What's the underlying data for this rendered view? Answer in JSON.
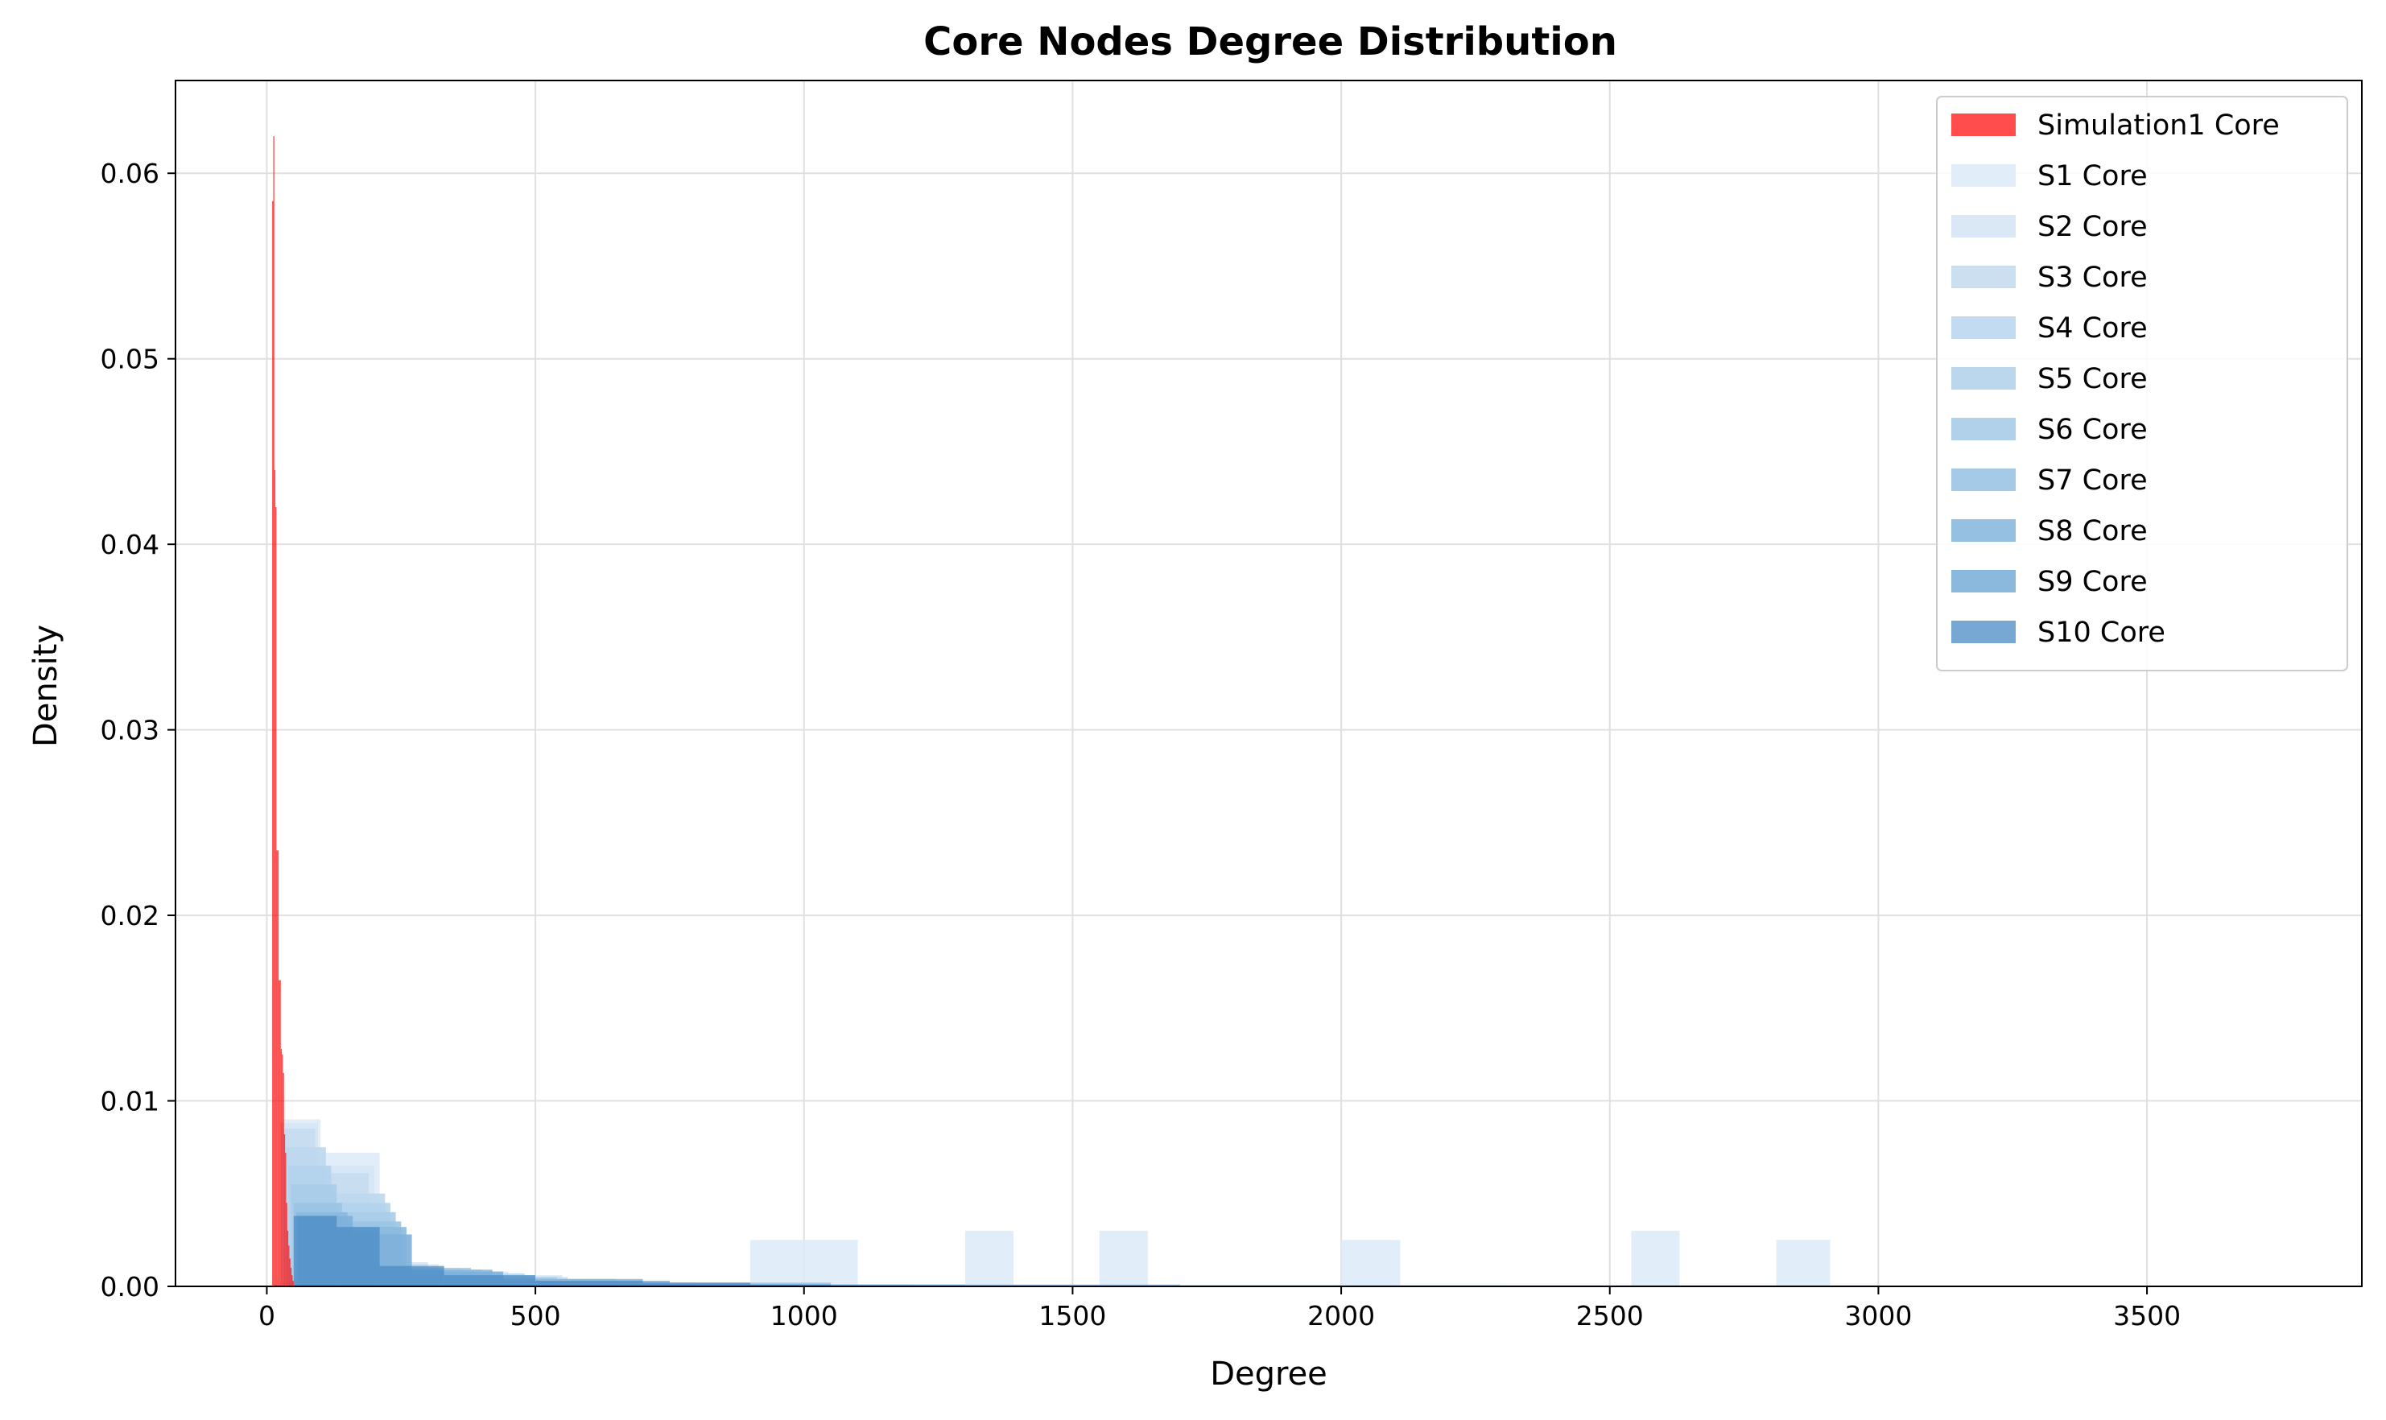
{
  "chart_data": {
    "type": "histogram",
    "title": "Core Nodes Degree Distribution",
    "xlabel": "Degree",
    "ylabel": "Density",
    "xlim": [
      -170,
      3900
    ],
    "ylim": [
      0,
      0.065
    ],
    "x_ticks": [
      0,
      500,
      1000,
      1500,
      2000,
      2500,
      3000,
      3500
    ],
    "x_tick_labels": [
      "0",
      "500",
      "1000",
      "1500",
      "2000",
      "2500",
      "3000",
      "3500"
    ],
    "y_ticks": [
      0,
      0.01,
      0.02,
      0.03,
      0.04,
      0.05,
      0.06
    ],
    "y_tick_labels": [
      "0.00",
      "0.01",
      "0.02",
      "0.03",
      "0.04",
      "0.05",
      "0.06"
    ],
    "grid": true,
    "legend_position": "upper right",
    "series": [
      {
        "name": "Simulation1 Core",
        "color": "#ff0000",
        "opacity": 0.7,
        "bins": [
          [
            10,
            12,
            0.0585
          ],
          [
            12,
            14,
            0.062
          ],
          [
            14,
            16,
            0.044
          ],
          [
            16,
            18,
            0.042
          ],
          [
            18,
            20,
            0.0235
          ],
          [
            20,
            22,
            0.0235
          ],
          [
            22,
            24,
            0.0165
          ],
          [
            24,
            26,
            0.0165
          ],
          [
            26,
            28,
            0.0128
          ],
          [
            28,
            30,
            0.0125
          ],
          [
            30,
            32,
            0.0115
          ],
          [
            32,
            34,
            0.0082
          ],
          [
            34,
            36,
            0.0072
          ],
          [
            36,
            38,
            0.0045
          ],
          [
            38,
            40,
            0.003
          ],
          [
            40,
            42,
            0.0022
          ],
          [
            42,
            44,
            0.0015
          ],
          [
            44,
            46,
            0.001
          ],
          [
            46,
            48,
            0.0006
          ],
          [
            48,
            50,
            0.0003
          ]
        ]
      },
      {
        "name": "S1 Core",
        "color": "#deebf7",
        "opacity": 0.9,
        "bins": [
          [
            30,
            100,
            0.009
          ],
          [
            100,
            210,
            0.0072
          ],
          [
            210,
            320,
            0.0012
          ],
          [
            320,
            450,
            0.0008
          ],
          [
            450,
            600,
            0.0004
          ],
          [
            900,
            1000,
            0.0025
          ],
          [
            1000,
            1100,
            0.0025
          ],
          [
            1300,
            1390,
            0.003
          ],
          [
            1550,
            1640,
            0.003
          ],
          [
            2000,
            2110,
            0.0025
          ],
          [
            2540,
            2630,
            0.003
          ],
          [
            2810,
            2910,
            0.0025
          ]
        ]
      },
      {
        "name": "S2 Core",
        "color": "#d6e6f4",
        "opacity": 0.9,
        "bins": [
          [
            25,
            95,
            0.0088
          ],
          [
            95,
            200,
            0.0065
          ],
          [
            200,
            300,
            0.0013
          ],
          [
            300,
            400,
            0.0009
          ],
          [
            400,
            550,
            0.0006
          ],
          [
            550,
            700,
            0.0003
          ]
        ]
      },
      {
        "name": "S3 Core",
        "color": "#c6dbef",
        "opacity": 0.9,
        "bins": [
          [
            30,
            90,
            0.0085
          ],
          [
            90,
            190,
            0.0061
          ],
          [
            190,
            300,
            0.0012
          ],
          [
            300,
            420,
            0.0008
          ],
          [
            420,
            560,
            0.0005
          ],
          [
            560,
            760,
            0.0002
          ]
        ]
      },
      {
        "name": "S4 Core",
        "color": "#bdd7ee",
        "opacity": 0.9,
        "bins": [
          [
            35,
            110,
            0.0075
          ],
          [
            110,
            220,
            0.005
          ],
          [
            220,
            340,
            0.001
          ],
          [
            340,
            480,
            0.0007
          ],
          [
            480,
            650,
            0.0003
          ]
        ]
      },
      {
        "name": "S5 Core",
        "color": "#b3d3ec",
        "opacity": 0.9,
        "bins": [
          [
            40,
            120,
            0.0065
          ],
          [
            120,
            230,
            0.0045
          ],
          [
            230,
            360,
            0.001
          ],
          [
            360,
            500,
            0.0006
          ],
          [
            500,
            800,
            0.0002
          ]
        ]
      },
      {
        "name": "S6 Core",
        "color": "#a8cce8",
        "opacity": 0.9,
        "bins": [
          [
            45,
            130,
            0.0055
          ],
          [
            130,
            240,
            0.004
          ],
          [
            240,
            380,
            0.001
          ],
          [
            380,
            540,
            0.0005
          ],
          [
            540,
            900,
            0.0002
          ],
          [
            900,
            1200,
            0.0001
          ]
        ]
      },
      {
        "name": "S7 Core",
        "color": "#9ac4e4",
        "opacity": 0.9,
        "bins": [
          [
            50,
            140,
            0.0045
          ],
          [
            140,
            250,
            0.0035
          ],
          [
            250,
            400,
            0.0009
          ],
          [
            400,
            650,
            0.0004
          ],
          [
            650,
            1050,
            0.0002
          ],
          [
            1050,
            1700,
            0.0001
          ],
          [
            1700,
            2300,
            5e-05
          ]
        ]
      },
      {
        "name": "S8 Core",
        "color": "#8ab9de",
        "opacity": 0.9,
        "bins": [
          [
            55,
            150,
            0.004
          ],
          [
            150,
            260,
            0.0032
          ],
          [
            260,
            420,
            0.0009
          ],
          [
            420,
            700,
            0.0004
          ],
          [
            700,
            1100,
            0.0001
          ],
          [
            1100,
            2000,
            5e-05
          ]
        ]
      },
      {
        "name": "S9 Core",
        "color": "#7eb1da",
        "opacity": 0.9,
        "bins": [
          [
            60,
            160,
            0.0038
          ],
          [
            160,
            270,
            0.0028
          ],
          [
            270,
            440,
            0.0008
          ],
          [
            440,
            750,
            0.0003
          ],
          [
            750,
            1300,
            0.0001
          ],
          [
            1300,
            3000,
            5e-05
          ]
        ]
      },
      {
        "name": "S10 Core",
        "color": "#4a8bc4",
        "opacity": 0.75,
        "bins": [
          [
            50,
            130,
            0.0038
          ],
          [
            130,
            210,
            0.0032
          ],
          [
            210,
            330,
            0.0011
          ],
          [
            330,
            500,
            0.0006
          ],
          [
            500,
            700,
            0.0003
          ],
          [
            700,
            900,
            0.0002
          ],
          [
            900,
            1050,
            0.0001
          ],
          [
            1050,
            2200,
            3e-05
          ],
          [
            2200,
            3750,
            2e-05
          ]
        ]
      }
    ]
  }
}
